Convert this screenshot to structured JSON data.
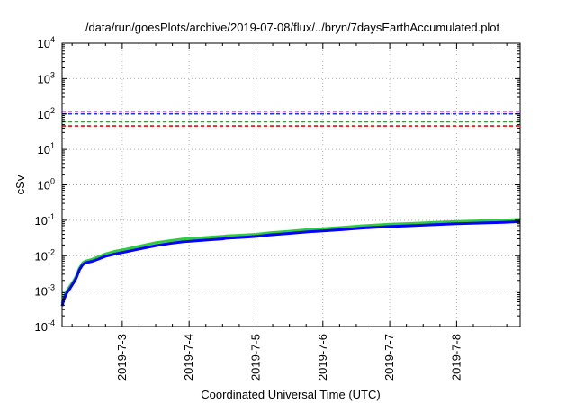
{
  "chart_data": {
    "type": "line",
    "title": "/data/run/goesPlots/archive/2019-07-08/flux/../bryn/7daysEarthAccumulated.plot",
    "xlabel": "Coordinated Universal Time (UTC)",
    "ylabel": "cSv",
    "yscale": "log",
    "ylim": [
      0.0001,
      10000
    ],
    "xlim": [
      2.1,
      8.95
    ],
    "grid": true,
    "x_ticks": [
      {
        "value": 3,
        "label": "2019-7-3"
      },
      {
        "value": 4,
        "label": "2019-7-4"
      },
      {
        "value": 5,
        "label": "2019-7-5"
      },
      {
        "value": 6,
        "label": "2019-7-6"
      },
      {
        "value": 7,
        "label": "2019-7-7"
      },
      {
        "value": 8,
        "label": "2019-7-8"
      }
    ],
    "y_ticks": [
      {
        "value": 0.0001,
        "base": "10",
        "exp": "-4"
      },
      {
        "value": 0.001,
        "base": "10",
        "exp": "-3"
      },
      {
        "value": 0.01,
        "base": "10",
        "exp": "-2"
      },
      {
        "value": 0.1,
        "base": "10",
        "exp": "-1"
      },
      {
        "value": 1,
        "base": "10",
        "exp": "0"
      },
      {
        "value": 10,
        "base": "10",
        "exp": "1"
      },
      {
        "value": 100,
        "base": "10",
        "exp": "2"
      },
      {
        "value": 1000,
        "base": "10",
        "exp": "3"
      },
      {
        "value": 10000,
        "base": "10",
        "exp": "4"
      }
    ],
    "reference_lines": [
      {
        "value": 115,
        "color": "#9400d3"
      },
      {
        "value": 100,
        "color": "#1f3fbf"
      },
      {
        "value": 60,
        "color": "#00c000"
      },
      {
        "value": 46,
        "color": "#ff0000"
      }
    ],
    "series": [
      {
        "color": "#2ecc40",
        "x": [
          2.1,
          2.13,
          2.17,
          2.22,
          2.27,
          2.31,
          2.36,
          2.41,
          2.45,
          2.55,
          2.65,
          2.75,
          2.9,
          3.05,
          3.2,
          3.35,
          3.5,
          3.7,
          3.9,
          4.1,
          4.3,
          4.5,
          4.55,
          4.8,
          5.0,
          5.2,
          5.5,
          5.8,
          6.0,
          6.3,
          6.6,
          7.0,
          7.3,
          7.6,
          8.0,
          8.4,
          8.7,
          8.95
        ],
        "values": [
          0.00045,
          0.0007,
          0.001,
          0.0014,
          0.0019,
          0.0026,
          0.0045,
          0.0063,
          0.007,
          0.0079,
          0.0094,
          0.0112,
          0.0134,
          0.0152,
          0.0176,
          0.0202,
          0.0231,
          0.0263,
          0.0295,
          0.031,
          0.033,
          0.035,
          0.036,
          0.038,
          0.04,
          0.044,
          0.049,
          0.055,
          0.058,
          0.063,
          0.07,
          0.077,
          0.081,
          0.086,
          0.092,
          0.097,
          0.101,
          0.106
        ]
      },
      {
        "color": "#0000ff",
        "x": [
          2.1,
          2.13,
          2.17,
          2.22,
          2.27,
          2.31,
          2.36,
          2.41,
          2.45,
          2.55,
          2.65,
          2.75,
          2.9,
          3.05,
          3.2,
          3.35,
          3.5,
          3.7,
          3.9,
          4.1,
          4.3,
          4.5,
          4.55,
          4.8,
          5.0,
          5.2,
          5.5,
          5.8,
          6.0,
          6.3,
          6.6,
          7.0,
          7.3,
          7.6,
          8.0,
          8.4,
          8.7,
          8.95
        ],
        "values": [
          0.00038,
          0.0006,
          0.00088,
          0.0012,
          0.0017,
          0.0023,
          0.004,
          0.0056,
          0.0063,
          0.0069,
          0.0081,
          0.0096,
          0.0113,
          0.0128,
          0.0147,
          0.0168,
          0.0192,
          0.0219,
          0.0246,
          0.0262,
          0.028,
          0.0297,
          0.031,
          0.0329,
          0.0348,
          0.0382,
          0.0425,
          0.0476,
          0.0502,
          0.0546,
          0.0605,
          0.0665,
          0.07,
          0.0742,
          0.0796,
          0.0838,
          0.0874,
          0.0915
        ]
      }
    ]
  }
}
